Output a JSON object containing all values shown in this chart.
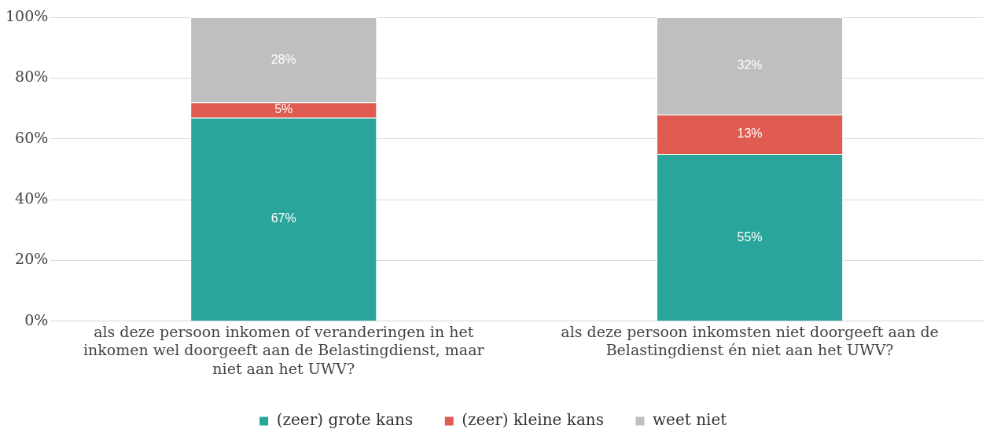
{
  "chart_data": {
    "type": "bar",
    "stacked": true,
    "categories": [
      "als deze persoon inkomen of veranderingen in het inkomen wel doorgeeft aan de Belastingdienst, maar niet aan het UWV?",
      "als deze persoon inkomsten niet doorgeeft aan de Belastingdienst én niet aan het UWV?"
    ],
    "series": [
      {
        "name": "(zeer) grote kans",
        "color": "#2aa59b",
        "values": [
          67,
          55
        ],
        "value_labels": [
          "67%",
          "55%"
        ]
      },
      {
        "name": "(zeer) kleine kans",
        "color": "#e05c50",
        "values": [
          5,
          13
        ],
        "value_labels": [
          "5%",
          "13%"
        ]
      },
      {
        "name": "weet niet",
        "color": "#bfbfbf",
        "values": [
          28,
          32
        ],
        "value_labels": [
          "28%",
          "32%"
        ]
      }
    ],
    "ylim": [
      0,
      100
    ],
    "yticks": [
      {
        "value": 0,
        "label": "0%"
      },
      {
        "value": 20,
        "label": "20%"
      },
      {
        "value": 40,
        "label": "40%"
      },
      {
        "value": 60,
        "label": "60%"
      },
      {
        "value": 80,
        "label": "80%"
      },
      {
        "value": 100,
        "label": "100%"
      }
    ],
    "grid": "y",
    "legend": "bottom"
  }
}
